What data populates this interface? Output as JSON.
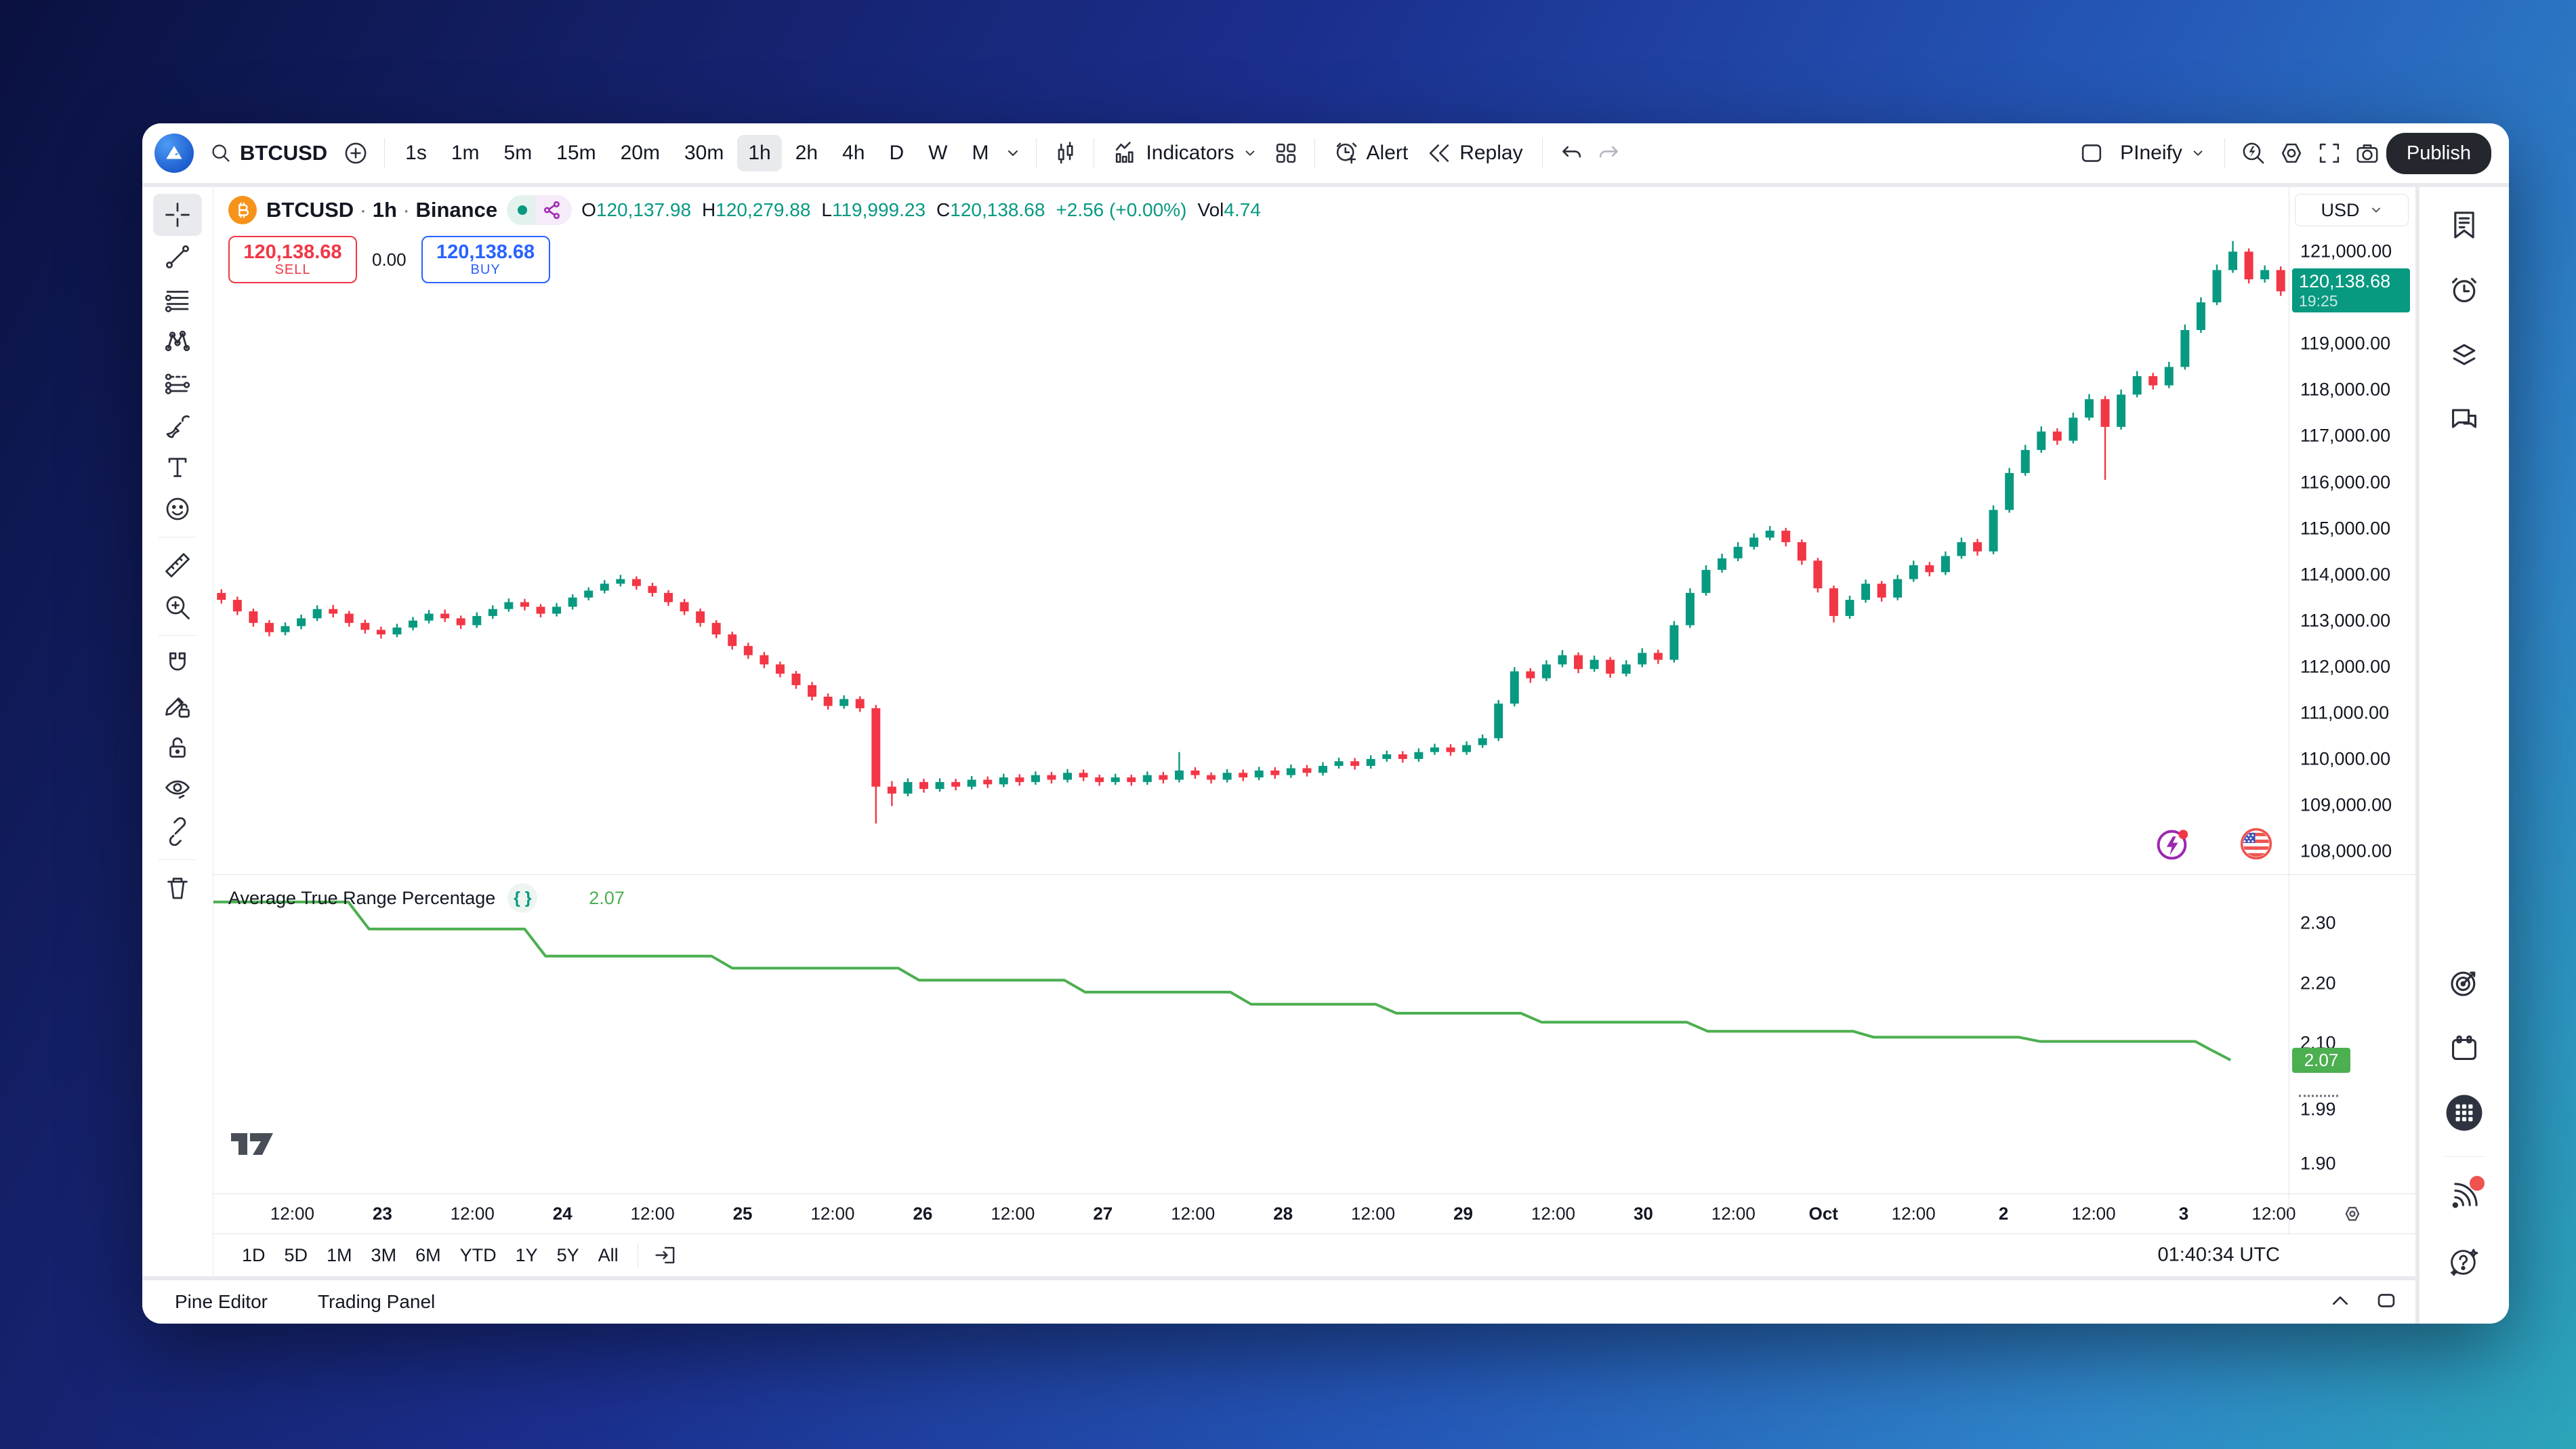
{
  "toolbar": {
    "symbol": "BTCUSD",
    "timeframes": [
      "1s",
      "1m",
      "5m",
      "15m",
      "20m",
      "30m",
      "1h",
      "2h",
      "4h",
      "D",
      "W",
      "M"
    ],
    "selected_timeframe": "1h",
    "indicators_label": "Indicators",
    "alert_label": "Alert",
    "replay_label": "Replay",
    "layout_name": "PIneify",
    "publish_label": "Publish",
    "icons": [
      "app-logo-icon",
      "search-icon",
      "add-plus-icon",
      "chevron-down-icon",
      "candlestick-style-icon",
      "indicators-icon",
      "layout-grid-icon",
      "alert-clock-icon",
      "replay-icon",
      "undo-icon",
      "redo-icon",
      "save-layout-icon",
      "quick-search-icon",
      "settings-gear-icon",
      "fullscreen-icon",
      "camera-snapshot-icon"
    ]
  },
  "symbol_info": {
    "name": "BTCUSD",
    "separator": "·",
    "interval": "1h",
    "exchange": "Binance",
    "o_label": "O",
    "open": "120,137.98",
    "h_label": "H",
    "high": "120,279.88",
    "l_label": "L",
    "low": "119,999.23",
    "c_label": "C",
    "close": "120,138.68",
    "change": "+2.56 (+0.00%)",
    "vol_label": "Vol",
    "volume": "4.74"
  },
  "trade": {
    "sell_price": "120,138.68",
    "sell_label": "SELL",
    "spread": "0.00",
    "buy_price": "120,138.68",
    "buy_label": "BUY"
  },
  "price_axis": {
    "currency": "USD",
    "labels": [
      "121,000.00",
      "119,000.00",
      "118,000.00",
      "117,000.00",
      "116,000.00",
      "115,000.00",
      "114,000.00",
      "113,000.00",
      "112,000.00",
      "111,000.00",
      "110,000.00",
      "109,000.00",
      "108,000.00"
    ],
    "last": {
      "price": "120,138.68",
      "countdown": "19:25"
    }
  },
  "indicator_pane": {
    "title": "Average True Range Percentage",
    "source_icon": "{ }",
    "value": "2.07",
    "badge": "2.07",
    "ticks": [
      {
        "text": "2.30",
        "dashed": false
      },
      {
        "text": "2.20",
        "dashed": false
      },
      {
        "text": "2.10",
        "dashed": false
      },
      {
        "text": "1.99",
        "dashed": true
      },
      {
        "text": "1.90",
        "dashed": false
      }
    ]
  },
  "time_axis": {
    "labels": [
      {
        "text": "12:00",
        "bold": false
      },
      {
        "text": "23",
        "bold": true
      },
      {
        "text": "12:00",
        "bold": false
      },
      {
        "text": "24",
        "bold": true
      },
      {
        "text": "12:00",
        "bold": false
      },
      {
        "text": "25",
        "bold": true
      },
      {
        "text": "12:00",
        "bold": false
      },
      {
        "text": "26",
        "bold": true
      },
      {
        "text": "12:00",
        "bold": false
      },
      {
        "text": "27",
        "bold": true
      },
      {
        "text": "12:00",
        "bold": false
      },
      {
        "text": "28",
        "bold": true
      },
      {
        "text": "12:00",
        "bold": false
      },
      {
        "text": "29",
        "bold": true
      },
      {
        "text": "12:00",
        "bold": false
      },
      {
        "text": "30",
        "bold": true
      },
      {
        "text": "12:00",
        "bold": false
      },
      {
        "text": "Oct",
        "bold": true
      },
      {
        "text": "12:00",
        "bold": false
      },
      {
        "text": "2",
        "bold": true
      },
      {
        "text": "12:00",
        "bold": false
      },
      {
        "text": "3",
        "bold": true
      },
      {
        "text": "12:00",
        "bold": false
      }
    ]
  },
  "range_bar": {
    "items": [
      "1D",
      "5D",
      "1M",
      "3M",
      "6M",
      "YTD",
      "1Y",
      "5Y",
      "All"
    ],
    "clock": "01:40:34 UTC"
  },
  "bottom_tabs": {
    "pine_editor": "Pine Editor",
    "trading_panel": "Trading Panel"
  },
  "sidebar_icons": [
    "watchlist-icon",
    "alerts-clock-icon",
    "object-tree-layers-icon",
    "chat-icon",
    "target-scope-icon",
    "calendar-icon",
    "apps-grid-icon",
    "broadcast-signal-icon",
    "help-sparkle-icon"
  ],
  "colors": {
    "up": "#089981",
    "down": "#f23645",
    "sell_red": "#f23645",
    "buy_blue": "#2962ff",
    "last_badge": "#089981",
    "atr_green": "#4caf50",
    "text": "#131722",
    "muted": "#787b86",
    "border": "#e0e3eb",
    "btc_orange": "#f7931a",
    "share_purple": "#9c27b0"
  },
  "chart_data": [
    {
      "type": "candlestick",
      "title": "BTCUSD · 1h · Binance",
      "x_range": "Sep 22 12:00 – Oct 3 12:00",
      "up_color": "#089981",
      "down_color": "#f23645",
      "price_domain": [
        107500,
        122400
      ],
      "y_ticks": [
        108000,
        109000,
        110000,
        111000,
        112000,
        113000,
        114000,
        115000,
        116000,
        117000,
        118000,
        119000,
        121000
      ],
      "last_price": 120138.68,
      "candles": [
        [
          113600,
          113680,
          113370,
          113450
        ],
        [
          113450,
          113520,
          113120,
          113200
        ],
        [
          113200,
          113260,
          112870,
          112950
        ],
        [
          112950,
          113010,
          112660,
          112750
        ],
        [
          112750,
          112960,
          112680,
          112880
        ],
        [
          112880,
          113130,
          112810,
          113050
        ],
        [
          113050,
          113330,
          112990,
          113250
        ],
        [
          113250,
          113340,
          113070,
          113150
        ],
        [
          113150,
          113210,
          112870,
          112950
        ],
        [
          112950,
          113020,
          112720,
          112800
        ],
        [
          112800,
          112870,
          112610,
          112700
        ],
        [
          112700,
          112930,
          112640,
          112850
        ],
        [
          112850,
          113080,
          112790,
          113000
        ],
        [
          113000,
          113230,
          112940,
          113150
        ],
        [
          113150,
          113240,
          112970,
          113050
        ],
        [
          113050,
          113110,
          112820,
          112900
        ],
        [
          112900,
          113180,
          112840,
          113100
        ],
        [
          113100,
          113330,
          113040,
          113250
        ],
        [
          113250,
          113480,
          113190,
          113400
        ],
        [
          113400,
          113470,
          113220,
          113300
        ],
        [
          113300,
          113360,
          113070,
          113150
        ],
        [
          113150,
          113380,
          113090,
          113300
        ],
        [
          113300,
          113570,
          113240,
          113500
        ],
        [
          113500,
          113720,
          113440,
          113650
        ],
        [
          113650,
          113880,
          113590,
          113800
        ],
        [
          113800,
          113990,
          113740,
          113900
        ],
        [
          113900,
          113960,
          113670,
          113750
        ],
        [
          113750,
          113820,
          113520,
          113600
        ],
        [
          113600,
          113660,
          113320,
          113400
        ],
        [
          113400,
          113470,
          113120,
          113200
        ],
        [
          113200,
          113260,
          112870,
          112950
        ],
        [
          112950,
          113010,
          112620,
          112700
        ],
        [
          112700,
          112760,
          112370,
          112450
        ],
        [
          112450,
          112520,
          112170,
          112250
        ],
        [
          112250,
          112320,
          111970,
          112050
        ],
        [
          112050,
          112110,
          111770,
          111850
        ],
        [
          111850,
          111910,
          111520,
          111600
        ],
        [
          111600,
          111670,
          111270,
          111350
        ],
        [
          111350,
          111420,
          111070,
          111150
        ],
        [
          111150,
          111380,
          111090,
          111300
        ],
        [
          111300,
          111360,
          111020,
          111100
        ],
        [
          111100,
          111170,
          108600,
          109400
        ],
        [
          109400,
          109520,
          108980,
          109250
        ],
        [
          109250,
          109580,
          109190,
          109500
        ],
        [
          109500,
          109570,
          109270,
          109350
        ],
        [
          109350,
          109580,
          109290,
          109500
        ],
        [
          109500,
          109570,
          109320,
          109400
        ],
        [
          109400,
          109630,
          109340,
          109550
        ],
        [
          109550,
          109620,
          109370,
          109450
        ],
        [
          109450,
          109680,
          109390,
          109600
        ],
        [
          109600,
          109670,
          109420,
          109500
        ],
        [
          109500,
          109730,
          109440,
          109650
        ],
        [
          109650,
          109720,
          109470,
          109550
        ],
        [
          109550,
          109780,
          109490,
          109700
        ],
        [
          109700,
          109770,
          109520,
          109600
        ],
        [
          109600,
          109660,
          109420,
          109500
        ],
        [
          109500,
          109680,
          109440,
          109600
        ],
        [
          109600,
          109660,
          109420,
          109500
        ],
        [
          109500,
          109730,
          109440,
          109650
        ],
        [
          109650,
          109720,
          109470,
          109550
        ],
        [
          109550,
          110150,
          109490,
          109750
        ],
        [
          109750,
          109820,
          109570,
          109650
        ],
        [
          109650,
          109710,
          109470,
          109550
        ],
        [
          109550,
          109780,
          109490,
          109700
        ],
        [
          109700,
          109770,
          109520,
          109600
        ],
        [
          109600,
          109830,
          109540,
          109750
        ],
        [
          109750,
          109820,
          109570,
          109650
        ],
        [
          109650,
          109880,
          109590,
          109800
        ],
        [
          109800,
          109870,
          109620,
          109700
        ],
        [
          109700,
          109930,
          109640,
          109850
        ],
        [
          109850,
          110030,
          109790,
          109950
        ],
        [
          109950,
          110020,
          109770,
          109850
        ],
        [
          109850,
          110080,
          109790,
          110000
        ],
        [
          110000,
          110180,
          109940,
          110100
        ],
        [
          110100,
          110170,
          109920,
          110000
        ],
        [
          110000,
          110230,
          109940,
          110150
        ],
        [
          110150,
          110330,
          110090,
          110250
        ],
        [
          110250,
          110320,
          110070,
          110150
        ],
        [
          110150,
          110380,
          110090,
          110300
        ],
        [
          110300,
          110530,
          110240,
          110450
        ],
        [
          110450,
          111280,
          110390,
          111200
        ],
        [
          111200,
          111990,
          111140,
          111900
        ],
        [
          111900,
          111970,
          111650,
          111750
        ],
        [
          111750,
          112140,
          111690,
          112050
        ],
        [
          112050,
          112360,
          111990,
          112250
        ],
        [
          112250,
          112310,
          111860,
          111950
        ],
        [
          111950,
          112240,
          111890,
          112150
        ],
        [
          112150,
          112210,
          111760,
          111850
        ],
        [
          111850,
          112140,
          111790,
          112050
        ],
        [
          112050,
          112400,
          111990,
          112300
        ],
        [
          112300,
          112370,
          112060,
          112150
        ],
        [
          112150,
          112990,
          112090,
          112900
        ],
        [
          112900,
          113700,
          112840,
          113600
        ],
        [
          113600,
          114200,
          113540,
          114100
        ],
        [
          114100,
          114450,
          114040,
          114350
        ],
        [
          114350,
          114700,
          114290,
          114600
        ],
        [
          114600,
          114890,
          114540,
          114800
        ],
        [
          114800,
          115050,
          114740,
          114950
        ],
        [
          114950,
          115010,
          114610,
          114700
        ],
        [
          114700,
          114760,
          114210,
          114300
        ],
        [
          114300,
          114360,
          113610,
          113700
        ],
        [
          113700,
          113760,
          112960,
          113100
        ],
        [
          113100,
          113540,
          113040,
          113450
        ],
        [
          113450,
          113890,
          113390,
          113800
        ],
        [
          113800,
          113860,
          113410,
          113500
        ],
        [
          113500,
          113990,
          113440,
          113900
        ],
        [
          113900,
          114300,
          113840,
          114200
        ],
        [
          114200,
          114270,
          113960,
          114050
        ],
        [
          114050,
          114500,
          113990,
          114400
        ],
        [
          114400,
          114800,
          114340,
          114700
        ],
        [
          114700,
          114770,
          114410,
          114500
        ],
        [
          114500,
          115500,
          114440,
          115400
        ],
        [
          115400,
          116310,
          115340,
          116200
        ],
        [
          116200,
          116810,
          116140,
          116700
        ],
        [
          116700,
          117210,
          116640,
          117100
        ],
        [
          117100,
          117170,
          116810,
          116900
        ],
        [
          116900,
          117510,
          116840,
          117400
        ],
        [
          117400,
          117910,
          117340,
          117800
        ],
        [
          117800,
          117870,
          116050,
          117200
        ],
        [
          117200,
          118010,
          117140,
          117900
        ],
        [
          117900,
          118410,
          117840,
          118300
        ],
        [
          118300,
          118370,
          118010,
          118100
        ],
        [
          118100,
          118610,
          118040,
          118500
        ],
        [
          118500,
          119420,
          118440,
          119300
        ],
        [
          119300,
          120010,
          119240,
          119900
        ],
        [
          119900,
          120720,
          119840,
          120600
        ],
        [
          120600,
          121230,
          120540,
          121000
        ],
        [
          121000,
          121070,
          120310,
          120400
        ],
        [
          120400,
          120700,
          120330,
          120600
        ],
        [
          120600,
          120680,
          120040,
          120139
        ]
      ]
    },
    {
      "type": "line",
      "title": "Average True Range Percentage",
      "color": "#4caf50",
      "y_domain": [
        1.85,
        2.38
      ],
      "y_ticks": [
        2.3,
        2.2,
        2.1,
        1.99,
        1.9
      ],
      "last_value": 2.07,
      "points": [
        [
          0,
          2.335
        ],
        [
          6.5,
          2.335
        ],
        [
          7.5,
          2.29
        ],
        [
          15,
          2.29
        ],
        [
          16,
          2.245
        ],
        [
          24,
          2.245
        ],
        [
          25,
          2.225
        ],
        [
          33,
          2.225
        ],
        [
          34,
          2.205
        ],
        [
          41,
          2.205
        ],
        [
          42,
          2.185
        ],
        [
          49,
          2.185
        ],
        [
          50,
          2.165
        ],
        [
          56,
          2.165
        ],
        [
          57,
          2.15
        ],
        [
          63,
          2.15
        ],
        [
          64,
          2.135
        ],
        [
          71,
          2.135
        ],
        [
          72,
          2.12
        ],
        [
          79,
          2.12
        ],
        [
          80,
          2.11
        ],
        [
          87,
          2.11
        ],
        [
          88,
          2.103
        ],
        [
          95.5,
          2.103
        ],
        [
          96.2,
          2.09
        ],
        [
          97.2,
          2.072
        ]
      ]
    }
  ]
}
